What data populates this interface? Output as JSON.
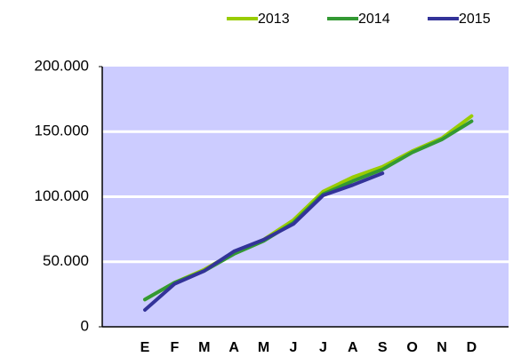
{
  "chart_data": {
    "type": "line",
    "categories": [
      "E",
      "F",
      "M",
      "A",
      "M",
      "J",
      "J",
      "A",
      "S",
      "O",
      "N",
      "D"
    ],
    "series": [
      {
        "name": "2013",
        "color": "#99cc00",
        "values": [
          21000,
          34000,
          44000,
          57000,
          67000,
          82000,
          104000,
          115000,
          123000,
          135000,
          145000,
          162000
        ]
      },
      {
        "name": "2014",
        "color": "#339933",
        "values": [
          21000,
          34000,
          43000,
          56000,
          66000,
          80000,
          102000,
          112000,
          121000,
          134000,
          144000,
          158000
        ]
      },
      {
        "name": "2015",
        "color": "#333399",
        "values": [
          13000,
          33000,
          43000,
          58000,
          67000,
          79000,
          101000,
          109000,
          118000,
          null,
          null,
          null
        ]
      }
    ],
    "ylim": [
      0,
      200000
    ],
    "yticks": [
      0,
      {
        "value": 50000,
        "label": "50.000"
      },
      {
        "value": 100000,
        "label": "100.000"
      },
      {
        "value": 150000,
        "label": "150.000"
      },
      {
        "value": 200000,
        "label": "200.000"
      }
    ],
    "grid": true
  }
}
